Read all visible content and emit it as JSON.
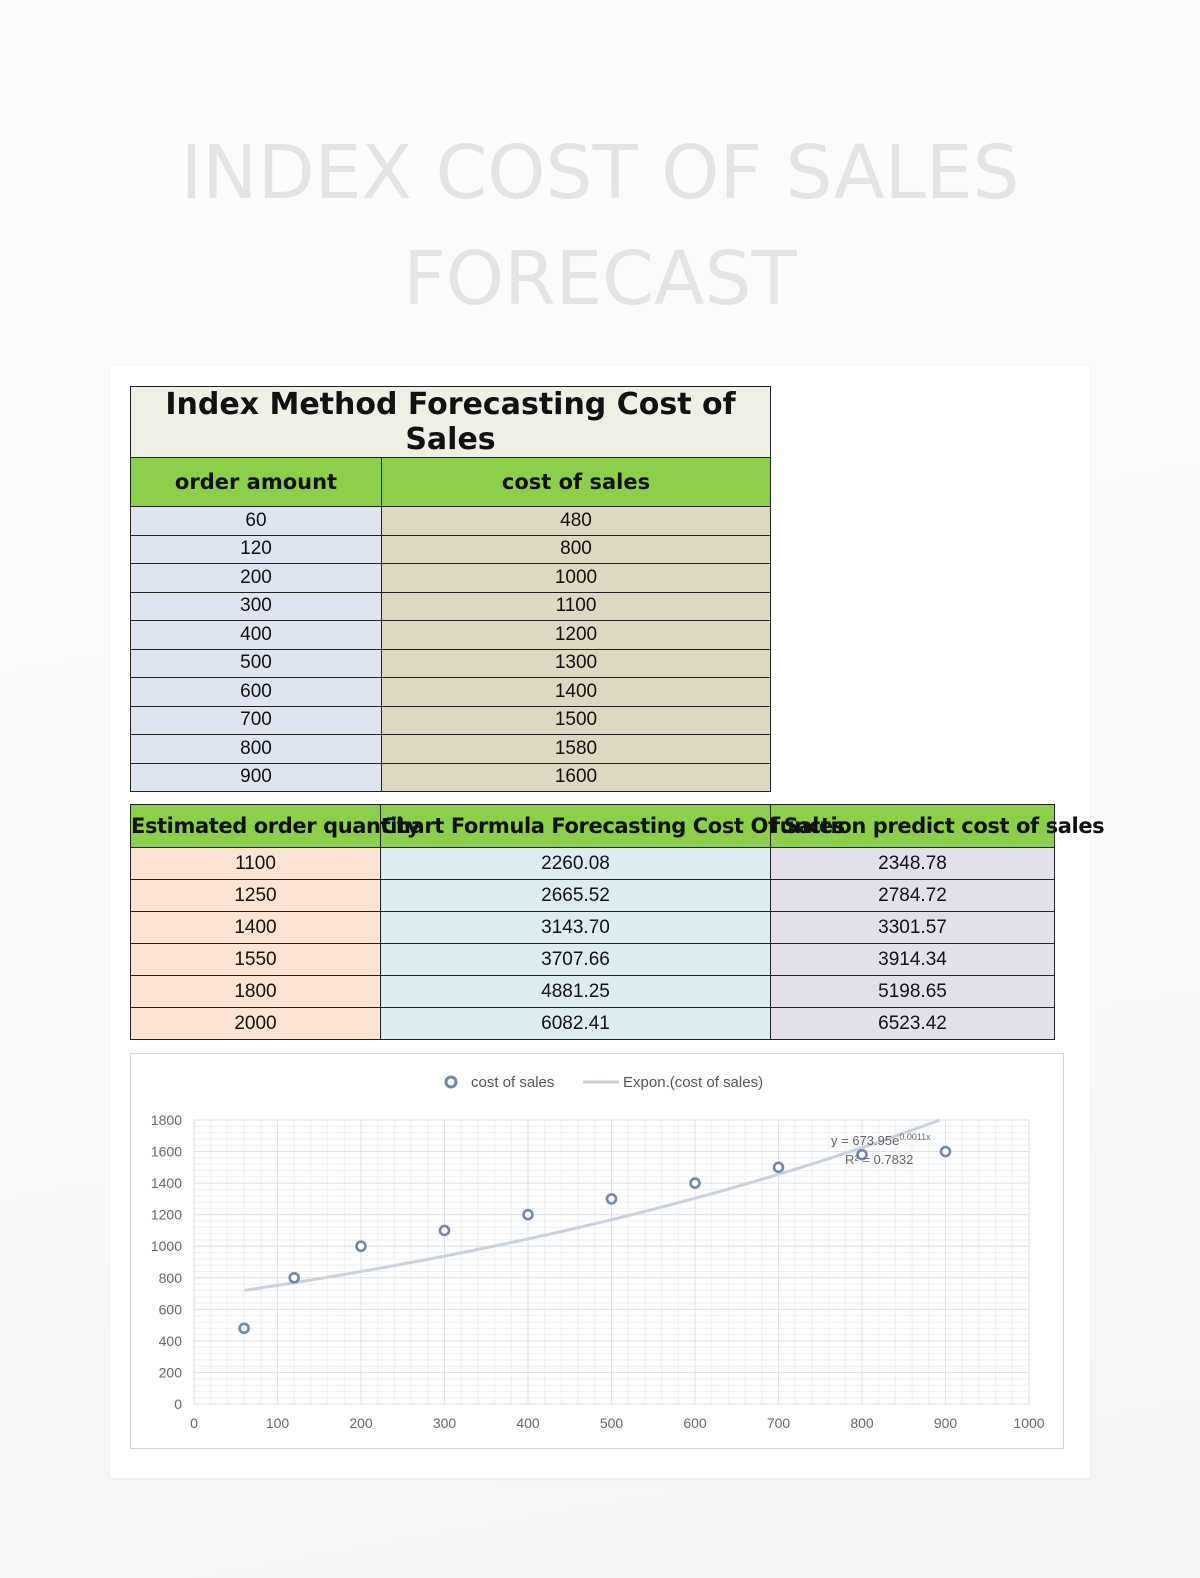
{
  "page": {
    "title_line1": "INDEX COST OF SALES",
    "title_line2": "FORECAST"
  },
  "table1": {
    "title": "Index Method Forecasting Cost of Sales",
    "headers": [
      "order amount",
      "cost of sales"
    ],
    "rows": [
      [
        "60",
        "480"
      ],
      [
        "120",
        "800"
      ],
      [
        "200",
        "1000"
      ],
      [
        "300",
        "1100"
      ],
      [
        "400",
        "1200"
      ],
      [
        "500",
        "1300"
      ],
      [
        "600",
        "1400"
      ],
      [
        "700",
        "1500"
      ],
      [
        "800",
        "1580"
      ],
      [
        "900",
        "1600"
      ]
    ]
  },
  "table2": {
    "headers": [
      "Estimated order quantity",
      "Chart Formula Forecasting Cost Of Sales",
      "function predict cost of sales"
    ],
    "rows": [
      [
        "1100",
        "2260.08",
        "2348.78"
      ],
      [
        "1250",
        "2665.52",
        "2784.72"
      ],
      [
        "1400",
        "3143.70",
        "3301.57"
      ],
      [
        "1550",
        "3707.66",
        "3914.34"
      ],
      [
        "1800",
        "4881.25",
        "5198.65"
      ],
      [
        "2000",
        "6082.41",
        "6523.42"
      ]
    ]
  },
  "colors": {
    "header_green": "#8ccf4b",
    "marker": "#6f88a8",
    "trendline": "#c9d1dd"
  },
  "chart_data": {
    "type": "scatter",
    "title": "",
    "xlabel": "",
    "ylabel": "",
    "xlim": [
      0,
      1000
    ],
    "ylim": [
      0,
      1800
    ],
    "x_ticks": [
      "0",
      "100",
      "200",
      "300",
      "400",
      "500",
      "600",
      "700",
      "800",
      "900",
      "1000"
    ],
    "y_ticks": [
      "0",
      "200",
      "400",
      "600",
      "800",
      "1000",
      "1200",
      "1400",
      "1600",
      "1800"
    ],
    "grid": true,
    "legend_position": "top-center",
    "series": [
      {
        "name": "cost of sales",
        "x": [
          60,
          120,
          200,
          300,
          400,
          500,
          600,
          700,
          800,
          900
        ],
        "y": [
          480,
          800,
          1000,
          1100,
          1200,
          1300,
          1400,
          1500,
          1580,
          1600
        ]
      }
    ],
    "trendline": {
      "name": "Expon.(cost of sales)",
      "type": "exponential",
      "a": 673.95,
      "b": 0.0011,
      "equation_base": "y = 673.95e",
      "equation_exp": "0.0011x",
      "r_squared": "R² = 0.7832"
    }
  }
}
